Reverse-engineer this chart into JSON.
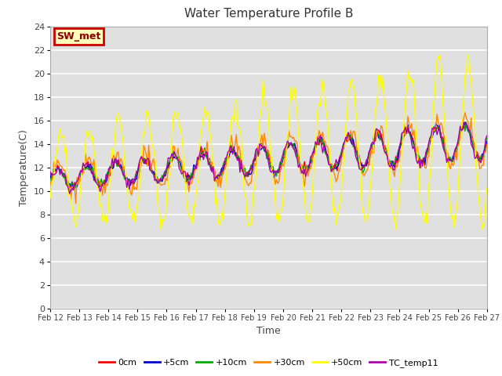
{
  "title": "Water Temperature Profile B",
  "xlabel": "Time",
  "ylabel": "Temperature(C)",
  "annotation": "SW_met",
  "ylim": [
    0,
    24
  ],
  "yticks": [
    0,
    2,
    4,
    6,
    8,
    10,
    12,
    14,
    16,
    18,
    20,
    22,
    24
  ],
  "x_labels": [
    "Feb 12",
    "Feb 13",
    "Feb 14",
    "Feb 15",
    "Feb 16",
    "Feb 17",
    "Feb 18",
    "Feb 19",
    "Feb 20",
    "Feb 21",
    "Feb 22",
    "Feb 23",
    "Feb 24",
    "Feb 25",
    "Feb 26",
    "Feb 27"
  ],
  "series_labels": [
    "0cm",
    "+5cm",
    "+10cm",
    "+30cm",
    "+50cm",
    "TC_temp11"
  ],
  "series_colors": [
    "#ff0000",
    "#0000cc",
    "#00aa00",
    "#ff8800",
    "#ffff00",
    "#aa00aa"
  ],
  "bg_color": "#e0e0e0",
  "annotation_bg": "#ffffbb",
  "annotation_border": "#cc0000",
  "annotation_text_color": "#880000",
  "grid_color": "#ffffff",
  "n_points": 360
}
